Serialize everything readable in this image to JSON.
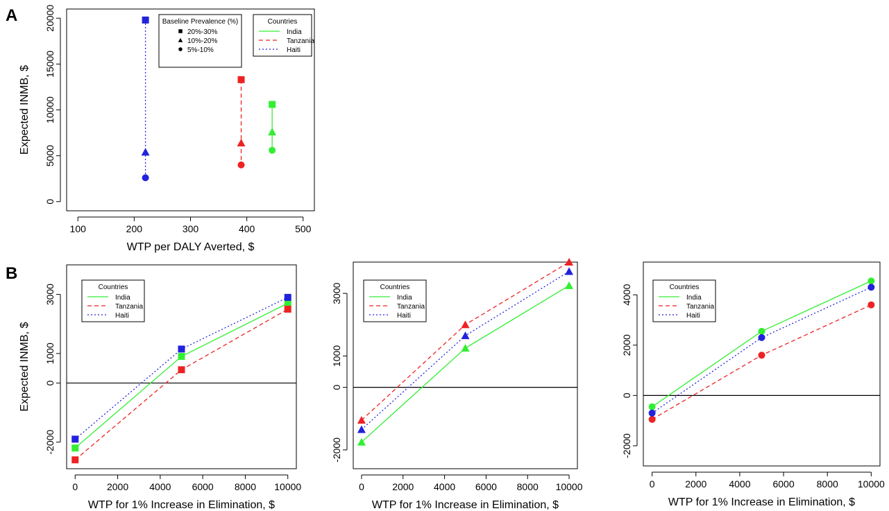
{
  "panel_labels": [
    "A",
    "B"
  ],
  "series_colors": {
    "India": "#33ee33",
    "Tanzania": "#ee2222",
    "Haiti": "#2222dd"
  },
  "chart_data": [
    {
      "type": "scatter",
      "panel": "A",
      "xlabel": "WTP per DALY Averted, $",
      "ylabel": "Expected INMB, $",
      "xlim": [
        80,
        520
      ],
      "ylim": [
        -1000,
        21000
      ],
      "xticks": [
        100,
        200,
        300,
        400,
        500
      ],
      "yticks": [
        0,
        5000,
        10000,
        15000,
        20000
      ],
      "grid": false,
      "legends": [
        {
          "title": "Baseline Prevalence (%)",
          "entries": [
            {
              "label": "20%-30%",
              "marker": "square"
            },
            {
              "label": "10%-20%",
              "marker": "triangle"
            },
            {
              "label": "5%-10%",
              "marker": "circle"
            }
          ]
        },
        {
          "title": "Countries",
          "entries": [
            {
              "label": "India",
              "style": "solid"
            },
            {
              "label": "Tanzania",
              "style": "dashed"
            },
            {
              "label": "Haiti",
              "style": "dotted"
            }
          ]
        }
      ],
      "series": [
        {
          "name": "India",
          "line": "solid",
          "points": [
            {
              "x": 445,
              "y": 10600,
              "marker": "square"
            },
            {
              "x": 445,
              "y": 7600,
              "marker": "triangle"
            },
            {
              "x": 445,
              "y": 5600,
              "marker": "circle"
            }
          ]
        },
        {
          "name": "Tanzania",
          "line": "dashed",
          "points": [
            {
              "x": 390,
              "y": 13300,
              "marker": "square"
            },
            {
              "x": 390,
              "y": 6400,
              "marker": "triangle"
            },
            {
              "x": 390,
              "y": 4000,
              "marker": "circle"
            }
          ]
        },
        {
          "name": "Haiti",
          "line": "dotted",
          "points": [
            {
              "x": 220,
              "y": 19800,
              "marker": "square"
            },
            {
              "x": 220,
              "y": 5400,
              "marker": "triangle"
            },
            {
              "x": 220,
              "y": 2600,
              "marker": "circle"
            }
          ]
        }
      ]
    },
    {
      "type": "line",
      "panel": "B",
      "marker": "square",
      "xlabel": "WTP for 1% Increase in Elimination, $",
      "ylabel": "Expected INMB, $",
      "xlim": [
        -400,
        10400
      ],
      "ylim": [
        -2900,
        4000
      ],
      "xticks": [
        0,
        2000,
        4000,
        6000,
        8000,
        10000
      ],
      "yticks": [
        -2000,
        0,
        1000,
        3000
      ],
      "hline": 0,
      "legends": [
        {
          "title": "Countries",
          "entries": [
            {
              "label": "India",
              "style": "solid"
            },
            {
              "label": "Tanzania",
              "style": "dashed"
            },
            {
              "label": "Haiti",
              "style": "dotted"
            }
          ]
        }
      ],
      "x": [
        0,
        5000,
        10000
      ],
      "series": [
        {
          "name": "India",
          "line": "solid",
          "values": [
            -2200,
            900,
            2700
          ]
        },
        {
          "name": "Tanzania",
          "line": "dashed",
          "values": [
            -2600,
            450,
            2500
          ]
        },
        {
          "name": "Haiti",
          "line": "dotted",
          "values": [
            -1900,
            1150,
            2900
          ]
        }
      ]
    },
    {
      "type": "line",
      "panel": "B",
      "marker": "triangle",
      "xlabel": "WTP for 1% Increase in Elimination, $",
      "ylabel": "",
      "xlim": [
        -400,
        10400
      ],
      "ylim": [
        -2600,
        4000
      ],
      "xticks": [
        0,
        2000,
        4000,
        6000,
        8000,
        10000
      ],
      "yticks": [
        -2000,
        0,
        1000,
        3000
      ],
      "hline": 0,
      "legends": [
        {
          "title": "Countries",
          "entries": [
            {
              "label": "India",
              "style": "solid"
            },
            {
              "label": "Tanzania",
              "style": "dashed"
            },
            {
              "label": "Haiti",
              "style": "dotted"
            }
          ]
        }
      ],
      "x": [
        0,
        5000,
        10000
      ],
      "series": [
        {
          "name": "India",
          "line": "solid",
          "values": [
            -1750,
            1250,
            3250
          ]
        },
        {
          "name": "Tanzania",
          "line": "dashed",
          "values": [
            -1050,
            2000,
            4000
          ]
        },
        {
          "name": "Haiti",
          "line": "dotted",
          "values": [
            -1350,
            1650,
            3700
          ]
        }
      ]
    },
    {
      "type": "line",
      "panel": "B",
      "marker": "circle",
      "xlabel": "WTP for 1% Increase in Elimination, $",
      "ylabel": "",
      "xlim": [
        -400,
        10400
      ],
      "ylim": [
        -2800,
        5300
      ],
      "xticks": [
        0,
        2000,
        4000,
        6000,
        8000,
        10000
      ],
      "yticks": [
        -2000,
        0,
        2000,
        4000
      ],
      "hline": 0,
      "legends": [
        {
          "title": "Countries",
          "entries": [
            {
              "label": "India",
              "style": "solid"
            },
            {
              "label": "Tanzania",
              "style": "dashed"
            },
            {
              "label": "Haiti",
              "style": "dotted"
            }
          ]
        }
      ],
      "x": [
        0,
        5000,
        10000
      ],
      "series": [
        {
          "name": "India",
          "line": "solid",
          "values": [
            -450,
            2550,
            4550
          ]
        },
        {
          "name": "Tanzania",
          "line": "dashed",
          "values": [
            -950,
            1600,
            3600
          ]
        },
        {
          "name": "Haiti",
          "line": "dotted",
          "values": [
            -700,
            2300,
            4300
          ]
        }
      ]
    }
  ]
}
